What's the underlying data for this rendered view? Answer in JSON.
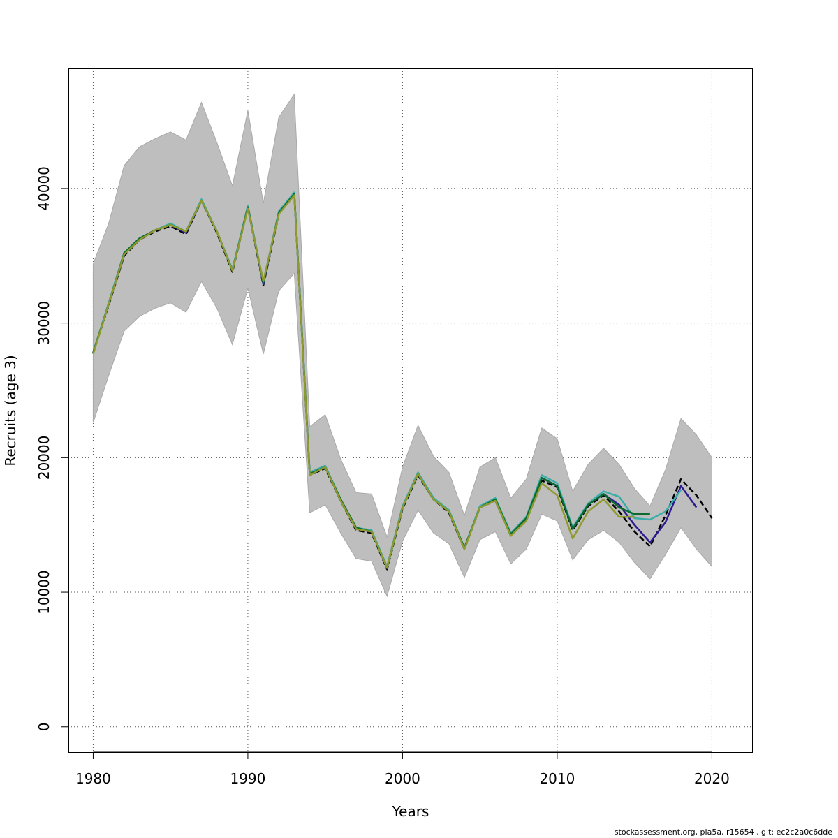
{
  "chart_data": {
    "type": "line",
    "title": "",
    "xlabel": "Years",
    "ylabel": "Recruits (age 3)",
    "xlim": [
      1978.4,
      2022.6
    ],
    "ylim": [
      -1880,
      48920
    ],
    "x_ticks": [
      1980,
      1990,
      2000,
      2010,
      2020
    ],
    "x_tick_labels": [
      "1980",
      "1990",
      "2000",
      "2010",
      "2020"
    ],
    "y_ticks": [
      0,
      10000,
      20000,
      30000,
      40000
    ],
    "y_tick_labels": [
      "0",
      "10000",
      "20000",
      "30000",
      "40000"
    ],
    "grid": true,
    "legend": null,
    "confidence_band": {
      "color": "#bebebe",
      "x": [
        1980,
        1981,
        1982,
        1983,
        1984,
        1985,
        1986,
        1987,
        1988,
        1989,
        1990,
        1991,
        1992,
        1993,
        1994,
        1995,
        1996,
        1997,
        1998,
        1999,
        2000,
        2001,
        2002,
        2003,
        2004,
        2005,
        2006,
        2007,
        2008,
        2009,
        2010,
        2011,
        2012,
        2013,
        2014,
        2015,
        2016,
        2017,
        2018,
        2019,
        2020
      ],
      "lower": [
        22600,
        26100,
        29400,
        30500,
        31100,
        31500,
        30800,
        33100,
        31100,
        28400,
        32600,
        27700,
        32400,
        33700,
        15900,
        16500,
        14400,
        12500,
        12300,
        9700,
        13800,
        16100,
        14400,
        13600,
        11100,
        13900,
        14500,
        12100,
        13200,
        15800,
        15300,
        12400,
        13900,
        14600,
        13700,
        12200,
        11000,
        12800,
        14800,
        13200,
        11900
      ],
      "upper": [
        34400,
        37400,
        41700,
        43100,
        43700,
        44200,
        43600,
        46400,
        43400,
        40200,
        45800,
        38900,
        45300,
        47000,
        22300,
        23200,
        19900,
        17400,
        17300,
        14100,
        19300,
        22400,
        20100,
        18900,
        15700,
        19300,
        20000,
        17000,
        18400,
        22200,
        21400,
        17500,
        19500,
        20700,
        19500,
        17700,
        16400,
        19100,
        22900,
        21700,
        20000
      ]
    },
    "series": [
      {
        "color": "#000000",
        "dashed": true,
        "x": [
          1980,
          1981,
          1982,
          1983,
          1984,
          1985,
          1986,
          1987,
          1988,
          1989,
          1990,
          1991,
          1992,
          1993,
          1994,
          1995,
          1996,
          1997,
          1998,
          1999,
          2000,
          2001,
          2002,
          2003,
          2004,
          2005,
          2006,
          2007,
          2008,
          2009,
          2010,
          2011,
          2012,
          2013,
          2014,
          2015,
          2016,
          2017,
          2018,
          2019,
          2020
        ],
        "values": [
          27800,
          31300,
          35000,
          36200,
          36800,
          37200,
          36600,
          39100,
          36700,
          33800,
          38600,
          32800,
          38100,
          39600,
          18700,
          19200,
          16800,
          14600,
          14400,
          11700,
          16200,
          18700,
          16900,
          15900,
          13200,
          16300,
          16800,
          14200,
          15400,
          18300,
          17800,
          14600,
          16400,
          17200,
          16000,
          14500,
          13400,
          15700,
          18400,
          17200,
          15500
        ]
      },
      {
        "color": "#2b1b8f",
        "dashed": false,
        "x": [
          1980,
          1981,
          1982,
          1983,
          1984,
          1985,
          1986,
          1987,
          1988,
          1989,
          1990,
          1991,
          1992,
          1993,
          1994,
          1995,
          1996,
          1997,
          1998,
          1999,
          2000,
          2001,
          2002,
          2003,
          2004,
          2005,
          2006,
          2007,
          2008,
          2009,
          2010,
          2011,
          2012,
          2013,
          2014,
          2015,
          2016,
          2017,
          2018,
          2019
        ],
        "values": [
          27800,
          31400,
          35100,
          36200,
          36900,
          37300,
          36700,
          39100,
          36800,
          33900,
          38700,
          32900,
          38200,
          39600,
          18800,
          19300,
          16900,
          14700,
          14500,
          11800,
          16300,
          18800,
          17000,
          16000,
          13300,
          16300,
          16900,
          14300,
          15500,
          18500,
          17900,
          14700,
          16500,
          17300,
          16500,
          15000,
          13700,
          15200,
          17900,
          16300
        ]
      },
      {
        "color": "#3aada8",
        "dashed": false,
        "x": [
          1980,
          1981,
          1982,
          1983,
          1984,
          1985,
          1986,
          1987,
          1988,
          1989,
          1990,
          1991,
          1992,
          1993,
          1994,
          1995,
          1996,
          1997,
          1998,
          1999,
          2000,
          2001,
          2002,
          2003,
          2004,
          2005,
          2006,
          2007,
          2008,
          2009,
          2010,
          2011,
          2012,
          2013,
          2014,
          2015,
          2016,
          2017,
          2018
        ],
        "values": [
          27800,
          31500,
          35200,
          36300,
          36900,
          37400,
          36800,
          39200,
          36800,
          34000,
          38700,
          33000,
          38300,
          39700,
          18900,
          19400,
          16900,
          14800,
          14600,
          11900,
          16400,
          18900,
          17000,
          16100,
          13300,
          16400,
          17000,
          14400,
          15600,
          18700,
          18100,
          14800,
          16600,
          17500,
          17100,
          15500,
          15400,
          16000,
          17600
        ]
      },
      {
        "color": "#0b6b2e",
        "dashed": false,
        "x": [
          1980,
          1981,
          1982,
          1983,
          1984,
          1985,
          1986,
          1987,
          1988,
          1989,
          1990,
          1991,
          1992,
          1993,
          1994,
          1995,
          1996,
          1997,
          1998,
          1999,
          2000,
          2001,
          2002,
          2003,
          2004,
          2005,
          2006,
          2007,
          2008,
          2009,
          2010,
          2011,
          2012,
          2013,
          2014,
          2015,
          2016
        ],
        "values": [
          27800,
          31400,
          35200,
          36300,
          36900,
          37300,
          36800,
          39100,
          36800,
          33900,
          38600,
          33000,
          38200,
          39600,
          18800,
          19300,
          16900,
          14800,
          14500,
          11800,
          16300,
          18800,
          16900,
          16000,
          13300,
          16300,
          16900,
          14300,
          15500,
          18500,
          17900,
          14700,
          16500,
          17300,
          16300,
          15800,
          15800
        ]
      },
      {
        "color": "#8f9a2e",
        "dashed": false,
        "x": [
          1980,
          1981,
          1982,
          1983,
          1984,
          1985,
          1986,
          1987,
          1988,
          1989,
          1990,
          1991,
          1992,
          1993,
          1994,
          1995,
          1996,
          1997,
          1998,
          1999,
          2000,
          2001,
          2002,
          2003,
          2004,
          2005,
          2006,
          2007,
          2008,
          2009,
          2010,
          2011,
          2012,
          2013,
          2014,
          2015
        ],
        "values": [
          27700,
          31400,
          35100,
          36200,
          36900,
          37300,
          36800,
          39100,
          36800,
          33900,
          38500,
          33100,
          38100,
          39500,
          18700,
          19300,
          16800,
          14700,
          14500,
          11800,
          16300,
          18800,
          16900,
          16000,
          13200,
          16300,
          16800,
          14200,
          15300,
          18100,
          17200,
          14000,
          16000,
          16900,
          15600,
          15600
        ]
      }
    ]
  },
  "footer": {
    "text": "stockassessment.org, pla5a, r15654 , git: ec2c2a0c6dde"
  }
}
